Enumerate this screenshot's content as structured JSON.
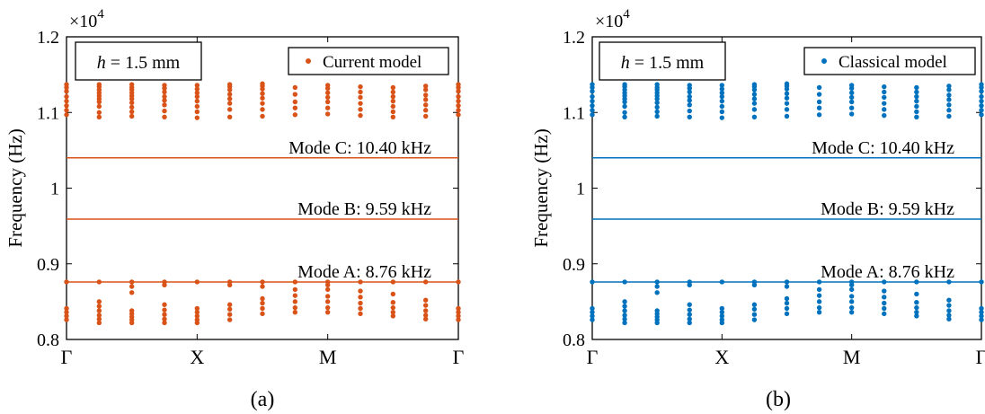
{
  "chart_data": [
    {
      "type": "scatter",
      "panel_label": "(a)",
      "ylabel": "Frequency (Hz)",
      "y_multiplier": "×10",
      "y_multiplier_exponent": "4",
      "ylim": [
        0.8,
        1.2
      ],
      "yticks": [
        0.8,
        0.9,
        1.0,
        1.1,
        1.2
      ],
      "ytick_labels": [
        "0.8",
        "0.9",
        "1",
        "1.1",
        "1.2"
      ],
      "xticks": [
        {
          "pos": 0,
          "label": "Γ"
        },
        {
          "pos": 1,
          "label": "X"
        },
        {
          "pos": 2,
          "label": "M"
        },
        {
          "pos": 3,
          "label": "Γ"
        }
      ],
      "xlim": [
        0,
        3
      ],
      "color": "#d95319",
      "box_label": {
        "var": "h",
        "rest": " = 1.5 mm"
      },
      "legend": {
        "label": "Current model",
        "position": "top-right"
      },
      "modes": [
        {
          "label": "Mode C: 10.40 kHz",
          "value": 1.04
        },
        {
          "label": "Mode B: 9.59 kHz",
          "value": 0.959
        },
        {
          "label": "Mode A: 8.76 kHz",
          "value": 0.876
        }
      ],
      "scatter_columns": [
        {
          "x": 0.0,
          "y": [
            0.826,
            0.831,
            0.836,
            0.841,
            0.876,
            1.097,
            1.103,
            1.109,
            1.115,
            1.121,
            1.128,
            1.133,
            1.137
          ]
        },
        {
          "x": 0.25,
          "y": [
            0.822,
            0.827,
            0.832,
            0.838,
            0.844,
            0.85,
            0.876,
            1.094,
            1.1,
            1.108,
            1.114,
            1.118,
            1.122,
            1.126,
            1.13,
            1.134,
            1.137
          ]
        },
        {
          "x": 0.5,
          "y": [
            0.822,
            0.826,
            0.83,
            0.834,
            0.838,
            0.862,
            0.87,
            0.876,
            1.095,
            1.101,
            1.107,
            1.113,
            1.118,
            1.122,
            1.126,
            1.13,
            1.133,
            1.137
          ]
        },
        {
          "x": 0.75,
          "y": [
            0.822,
            0.827,
            0.833,
            0.839,
            0.846,
            0.872,
            0.876,
            1.094,
            1.102,
            1.11,
            1.116,
            1.121,
            1.127,
            1.132,
            1.136
          ]
        },
        {
          "x": 1.0,
          "y": [
            0.822,
            0.826,
            0.831,
            0.836,
            0.841,
            0.876,
            1.093,
            1.101,
            1.108,
            1.115,
            1.121,
            1.126,
            1.131,
            1.136
          ]
        },
        {
          "x": 1.25,
          "y": [
            0.826,
            0.833,
            0.84,
            0.846,
            0.872,
            0.876,
            1.094,
            1.104,
            1.112,
            1.118,
            1.124,
            1.13,
            1.134,
            1.137
          ]
        },
        {
          "x": 1.5,
          "y": [
            0.834,
            0.841,
            0.848,
            0.854,
            0.87,
            0.876,
            1.095,
            1.104,
            1.112,
            1.119,
            1.125,
            1.131,
            1.135,
            1.138
          ]
        },
        {
          "x": 1.75,
          "y": [
            0.836,
            0.842,
            0.85,
            0.858,
            0.866,
            0.876,
            1.097,
            1.106,
            1.114,
            1.124,
            1.133
          ]
        },
        {
          "x": 2.0,
          "y": [
            0.836,
            0.842,
            0.85,
            0.857,
            0.866,
            0.872,
            0.876,
            1.098,
            1.106,
            1.114,
            1.12,
            1.126,
            1.132,
            1.136
          ]
        },
        {
          "x": 2.25,
          "y": [
            0.834,
            0.841,
            0.848,
            0.856,
            0.864,
            0.876,
            1.096,
            1.104,
            1.112,
            1.12,
            1.127,
            1.134
          ]
        },
        {
          "x": 2.5,
          "y": [
            0.831,
            0.836,
            0.842,
            0.849,
            0.86,
            0.876,
            1.094,
            1.101,
            1.108,
            1.115,
            1.121,
            1.127,
            1.133
          ]
        },
        {
          "x": 2.75,
          "y": [
            0.827,
            0.832,
            0.838,
            0.845,
            0.852,
            0.876,
            1.095,
            1.103,
            1.11,
            1.117,
            1.123,
            1.13,
            1.135
          ]
        },
        {
          "x": 3.0,
          "y": [
            0.826,
            0.831,
            0.836,
            0.841,
            0.876,
            1.097,
            1.103,
            1.109,
            1.115,
            1.121,
            1.128,
            1.133,
            1.137
          ]
        }
      ]
    },
    {
      "type": "scatter",
      "panel_label": "(b)",
      "ylabel": "Frequency (Hz)",
      "y_multiplier": "×10",
      "y_multiplier_exponent": "4",
      "ylim": [
        0.8,
        1.2
      ],
      "yticks": [
        0.8,
        0.9,
        1.0,
        1.1,
        1.2
      ],
      "ytick_labels": [
        "0.8",
        "0.9",
        "1",
        "1.1",
        "1.2"
      ],
      "xticks": [
        {
          "pos": 0,
          "label": "Γ"
        },
        {
          "pos": 1,
          "label": "X"
        },
        {
          "pos": 2,
          "label": "M"
        },
        {
          "pos": 3,
          "label": "Γ"
        }
      ],
      "xlim": [
        0,
        3
      ],
      "color": "#0072bd",
      "box_label": {
        "var": "h",
        "rest": " = 1.5 mm"
      },
      "legend": {
        "label": "Classical model",
        "position": "top-right"
      },
      "modes": [
        {
          "label": "Mode C: 10.40 kHz",
          "value": 1.04
        },
        {
          "label": "Mode B: 9.59 kHz",
          "value": 0.959
        },
        {
          "label": "Mode A: 8.76 kHz",
          "value": 0.876
        }
      ],
      "scatter_columns": [
        {
          "x": 0.0,
          "y": [
            0.826,
            0.831,
            0.836,
            0.841,
            0.876,
            1.097,
            1.103,
            1.109,
            1.115,
            1.121,
            1.128,
            1.133,
            1.137
          ]
        },
        {
          "x": 0.25,
          "y": [
            0.822,
            0.827,
            0.832,
            0.838,
            0.844,
            0.85,
            0.876,
            1.094,
            1.1,
            1.108,
            1.114,
            1.118,
            1.122,
            1.126,
            1.13,
            1.134,
            1.137
          ]
        },
        {
          "x": 0.5,
          "y": [
            0.822,
            0.826,
            0.83,
            0.834,
            0.838,
            0.862,
            0.87,
            0.876,
            1.095,
            1.101,
            1.107,
            1.113,
            1.118,
            1.122,
            1.126,
            1.13,
            1.133,
            1.137
          ]
        },
        {
          "x": 0.75,
          "y": [
            0.822,
            0.827,
            0.833,
            0.839,
            0.846,
            0.872,
            0.876,
            1.094,
            1.102,
            1.11,
            1.116,
            1.121,
            1.127,
            1.132,
            1.136
          ]
        },
        {
          "x": 1.0,
          "y": [
            0.822,
            0.826,
            0.831,
            0.836,
            0.841,
            0.876,
            1.093,
            1.101,
            1.108,
            1.115,
            1.121,
            1.126,
            1.131,
            1.136
          ]
        },
        {
          "x": 1.25,
          "y": [
            0.826,
            0.833,
            0.84,
            0.846,
            0.872,
            0.876,
            1.094,
            1.104,
            1.112,
            1.118,
            1.124,
            1.13,
            1.134,
            1.137
          ]
        },
        {
          "x": 1.5,
          "y": [
            0.834,
            0.841,
            0.848,
            0.854,
            0.87,
            0.876,
            1.095,
            1.104,
            1.112,
            1.119,
            1.125,
            1.131,
            1.135,
            1.138
          ]
        },
        {
          "x": 1.75,
          "y": [
            0.836,
            0.842,
            0.85,
            0.858,
            0.866,
            0.876,
            1.097,
            1.106,
            1.114,
            1.124,
            1.133
          ]
        },
        {
          "x": 2.0,
          "y": [
            0.836,
            0.842,
            0.85,
            0.857,
            0.866,
            0.872,
            0.876,
            1.098,
            1.106,
            1.114,
            1.12,
            1.126,
            1.132,
            1.136
          ]
        },
        {
          "x": 2.25,
          "y": [
            0.834,
            0.841,
            0.848,
            0.856,
            0.864,
            0.876,
            1.096,
            1.104,
            1.112,
            1.12,
            1.127,
            1.134
          ]
        },
        {
          "x": 2.5,
          "y": [
            0.831,
            0.836,
            0.842,
            0.849,
            0.86,
            0.876,
            1.094,
            1.101,
            1.108,
            1.115,
            1.121,
            1.127,
            1.133
          ]
        },
        {
          "x": 2.75,
          "y": [
            0.827,
            0.832,
            0.838,
            0.845,
            0.852,
            0.876,
            1.095,
            1.103,
            1.11,
            1.117,
            1.123,
            1.13,
            1.135
          ]
        },
        {
          "x": 3.0,
          "y": [
            0.826,
            0.831,
            0.836,
            0.841,
            0.876,
            1.097,
            1.103,
            1.109,
            1.115,
            1.121,
            1.128,
            1.133,
            1.137
          ]
        }
      ]
    }
  ]
}
